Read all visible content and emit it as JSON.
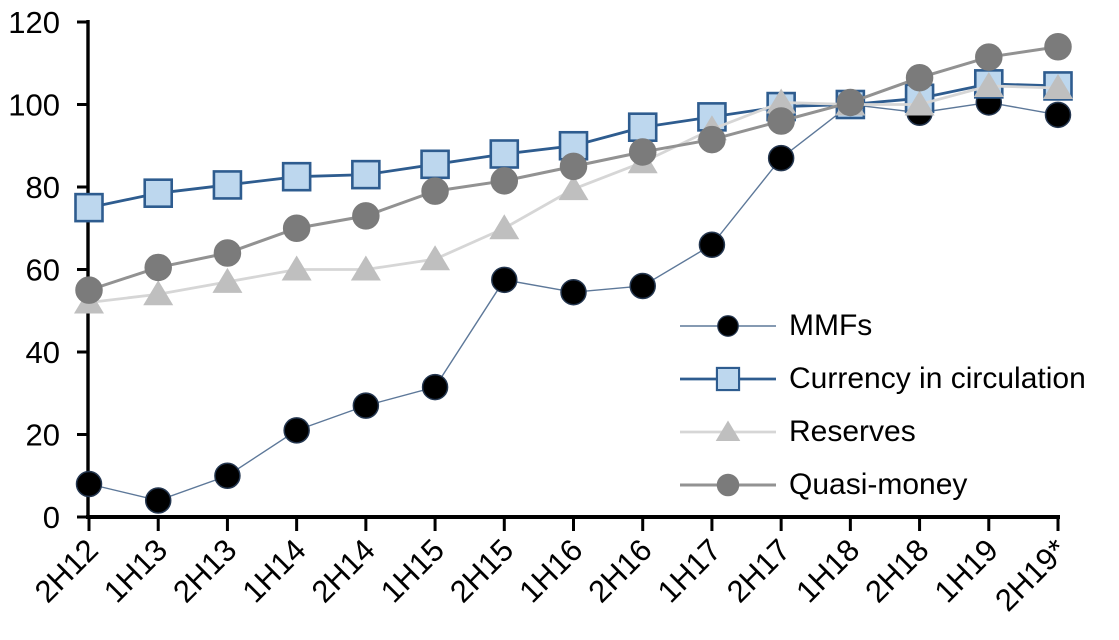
{
  "chart_data": {
    "type": "line",
    "title": "",
    "categories": [
      "2H12",
      "1H13",
      "2H13",
      "1H14",
      "2H14",
      "1H15",
      "2H15",
      "1H16",
      "2H16",
      "1H17",
      "2H17",
      "1H18",
      "2H18",
      "1H19",
      "2H19*"
    ],
    "ylim": [
      0,
      120
    ],
    "yticks": [
      0,
      20,
      40,
      60,
      80,
      100,
      120
    ],
    "grid": false,
    "legend_position": "inside-right",
    "x_tick_label_rotation_deg": -45,
    "axis_color": "#000000",
    "series": [
      {
        "name": "MMFs",
        "marker": "circle",
        "marker_fill": "#000000",
        "marker_stroke": "#24364F",
        "line_color": "#5D7899",
        "line_width": 1.4,
        "values": [
          8,
          4,
          10,
          21,
          27,
          31.5,
          57.5,
          54.5,
          56,
          66,
          87,
          100,
          98,
          100.5,
          97.5
        ]
      },
      {
        "name": "Currency in circulation",
        "marker": "square",
        "marker_fill": "#BDD7EE",
        "marker_stroke": "#2E5C8F",
        "line_color": "#2E5C8F",
        "line_width": 2.8,
        "values": [
          75,
          78.5,
          80.5,
          82.5,
          83,
          85.5,
          88,
          90,
          94.5,
          97,
          99.5,
          100,
          101.5,
          105,
          104.5
        ]
      },
      {
        "name": "Reserves",
        "marker": "triangle",
        "marker_fill": "#BFBFBF",
        "marker_stroke": "#BFBFBF",
        "line_color": "#D6D6D6",
        "line_width": 2.8,
        "values": [
          52,
          54,
          57,
          60,
          60,
          62.5,
          70,
          79.5,
          86,
          94,
          100.5,
          100,
          100,
          104.5,
          104
        ]
      },
      {
        "name": "Quasi-money",
        "marker": "circle",
        "marker_fill": "#7B7B7B",
        "marker_stroke": "#7B7B7B",
        "line_color": "#929292",
        "line_width": 3,
        "values": [
          55,
          60.5,
          64,
          70,
          73,
          79,
          81.5,
          85,
          88.5,
          91.5,
          96,
          100.5,
          106.5,
          111.5,
          114
        ]
      }
    ]
  }
}
